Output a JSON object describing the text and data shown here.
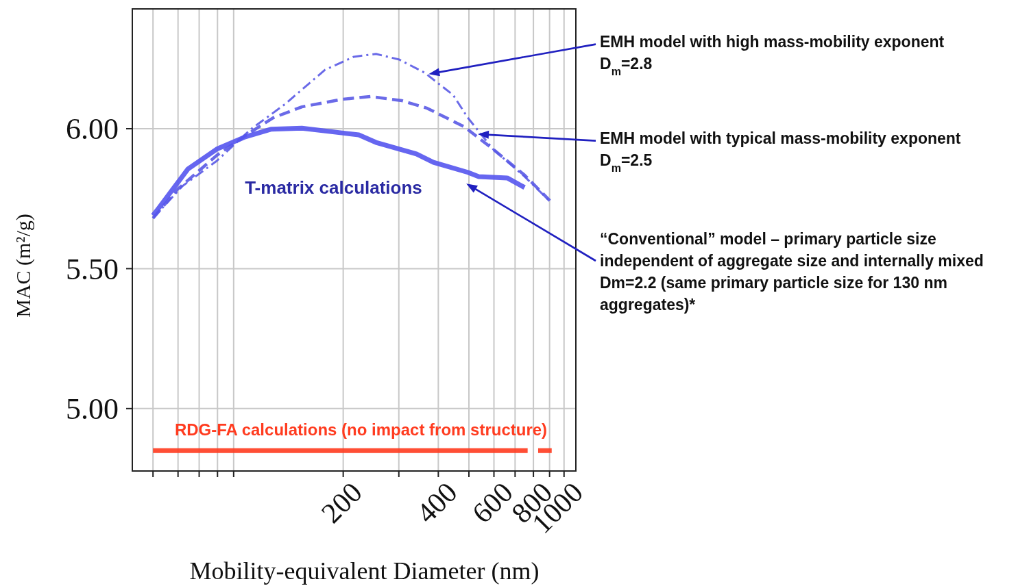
{
  "chart_data": {
    "type": "line",
    "xlabel": "Mobility-equivalent Diameter (nm)",
    "ylabel": "MAC (m²/g)",
    "log": "x",
    "xlim": [
      43,
      1090
    ],
    "xticks": [
      {
        "value": 50,
        "label": null
      },
      {
        "value": 60,
        "label": null
      },
      {
        "value": 70,
        "label": null
      },
      {
        "value": 80,
        "label": null
      },
      {
        "value": 90,
        "label": null
      },
      200,
      {
        "value": 300,
        "label": null
      },
      400,
      {
        "value": 500,
        "label": null
      },
      600,
      {
        "value": 700,
        "label": null
      },
      800,
      {
        "value": 900,
        "label": null
      },
      1000
    ],
    "ylim": [
      4.777,
      6.428
    ],
    "yticks": [
      {
        "value": 5,
        "label": "5.00"
      },
      {
        "value": 5.5,
        "label": "5.50"
      },
      {
        "value": 6,
        "label": "6.00"
      }
    ],
    "grid": true,
    "series": [
      {
        "color": "#5a5ae6",
        "line_style": "dashdot",
        "x": [
          50,
          62,
          79.6,
          102,
          131,
          175,
          216,
          254,
          301,
          362,
          446,
          496,
          596,
          750,
          892
        ],
        "values": [
          5.68,
          5.795,
          5.885,
          5.998,
          6.088,
          6.21,
          6.257,
          6.267,
          6.247,
          6.2,
          6.12,
          6.039,
          5.927,
          5.829,
          5.746
        ]
      },
      {
        "color": "#5a5ae6",
        "line_style": "dashed",
        "x": [
          50,
          59.6,
          79.6,
          102,
          120,
          148,
          198,
          244,
          307,
          369,
          483,
          596,
          750,
          902
        ],
        "values": [
          5.68,
          5.782,
          5.905,
          5.988,
          6.039,
          6.078,
          6.105,
          6.115,
          6.1,
          6.073,
          6.007,
          5.927,
          5.834,
          5.743
        ]
      },
      {
        "color": "#5555ee",
        "line_style": "solid",
        "x": [
          50,
          52.1,
          64.5,
          79.6,
          98,
          118,
          148,
          198,
          224,
          254,
          341,
          386,
          496,
          537,
          661,
          750
        ],
        "values": [
          5.69,
          5.716,
          5.856,
          5.927,
          5.971,
          5.998,
          6.002,
          5.985,
          5.978,
          5.951,
          5.91,
          5.88,
          5.844,
          5.829,
          5.824,
          5.79
        ]
      },
      {
        "name": "RDG-FA calculations (no impact from structure)",
        "color": "#ff3b1f",
        "line_style": "solid",
        "x": [
          50,
          767,
          790,
          828,
          914
        ],
        "values": [
          4.85,
          4.85,
          null,
          4.85,
          4.85
        ]
      }
    ],
    "annotations": [
      "T-matrix calculations",
      "EMH model with high mass-mobility exponent D$_{m}$=2.8",
      "EMH model with typical mass-mobility exponent D$_{m}$=2.5",
      "“Conventional” model – primary particle size independent of aggregate size and internally mixed Dm=2.2 (same primary particle size for 130 nm aggregates)*"
    ]
  }
}
